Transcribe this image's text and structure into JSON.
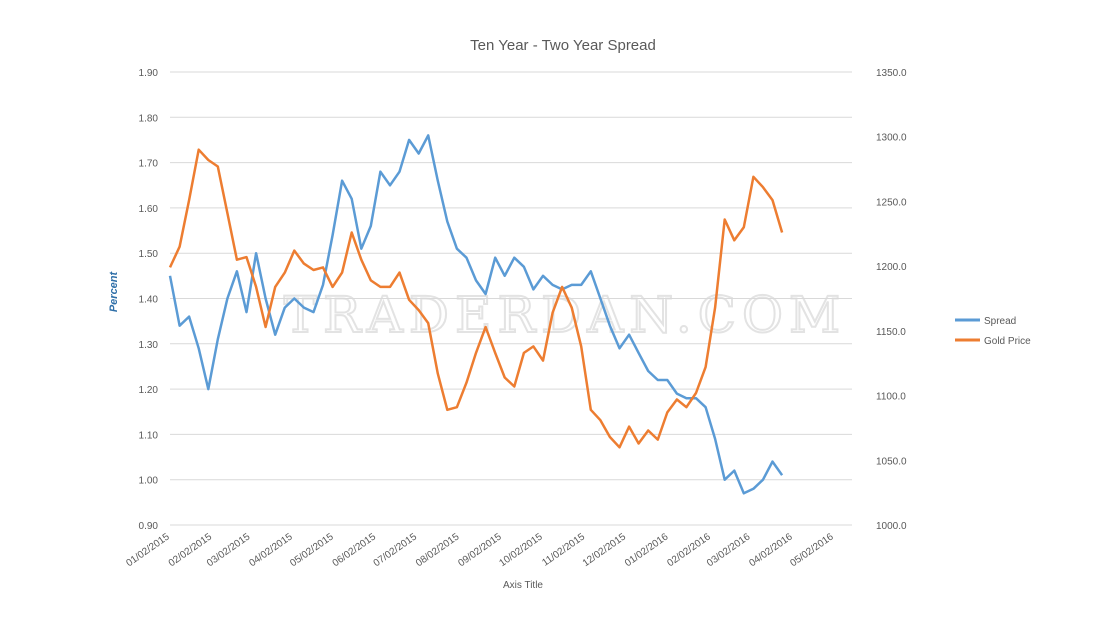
{
  "chart_data": {
    "type": "line",
    "title": "Ten Year - Two Year Spread",
    "xlabel": "Axis Title",
    "ylabel": "Percent",
    "y2label": "",
    "watermark": "TRADERDAN.COM",
    "ylim": [
      0.9,
      1.9
    ],
    "y2lim": [
      1000.0,
      1350.0
    ],
    "xlim": [
      "01/02/2015",
      "05/02/2016"
    ],
    "grid": true,
    "legend_position": "right",
    "y_ticks": [
      "0.90",
      "1.00",
      "1.10",
      "1.20",
      "1.30",
      "1.40",
      "1.50",
      "1.60",
      "1.70",
      "1.80",
      "1.90"
    ],
    "y2_ticks": [
      "1000.0",
      "1050.0",
      "1100.0",
      "1150.0",
      "1200.0",
      "1250.0",
      "1300.0",
      "1350.0"
    ],
    "x_ticks": [
      "01/02/2015",
      "02/02/2015",
      "03/02/2015",
      "04/02/2015",
      "05/02/2015",
      "06/02/2015",
      "07/02/2015",
      "08/02/2015",
      "09/02/2015",
      "10/02/2015",
      "11/02/2015",
      "12/02/2015",
      "01/02/2016",
      "02/02/2016",
      "03/02/2016",
      "04/02/2016",
      "05/02/2016"
    ],
    "x": [
      "01/02/2015",
      "01/09/2015",
      "01/16/2015",
      "01/23/2015",
      "01/30/2015",
      "02/06/2015",
      "02/13/2015",
      "02/20/2015",
      "02/27/2015",
      "03/06/2015",
      "03/13/2015",
      "03/20/2015",
      "03/27/2015",
      "04/03/2015",
      "04/10/2015",
      "04/17/2015",
      "04/24/2015",
      "05/01/2015",
      "05/08/2015",
      "05/15/2015",
      "05/22/2015",
      "05/29/2015",
      "06/05/2015",
      "06/12/2015",
      "06/19/2015",
      "06/26/2015",
      "07/03/2015",
      "07/10/2015",
      "07/17/2015",
      "07/24/2015",
      "07/31/2015",
      "08/07/2015",
      "08/14/2015",
      "08/21/2015",
      "08/28/2015",
      "09/04/2015",
      "09/11/2015",
      "09/18/2015",
      "09/25/2015",
      "10/02/2015",
      "10/09/2015",
      "10/16/2015",
      "10/23/2015",
      "10/30/2015",
      "11/06/2015",
      "11/13/2015",
      "11/20/2015",
      "11/27/2015",
      "12/04/2015",
      "12/11/2015",
      "12/18/2015",
      "12/25/2015",
      "01/01/2016",
      "01/08/2016",
      "01/15/2016",
      "01/22/2016",
      "01/29/2016",
      "02/05/2016",
      "02/12/2016",
      "02/19/2016",
      "02/26/2016",
      "03/04/2016",
      "03/11/2016",
      "03/18/2016",
      "03/25/2016"
    ],
    "series": [
      {
        "name": "Spread",
        "axis": "left",
        "color": "#5b9bd5",
        "values": [
          1.45,
          1.34,
          1.36,
          1.29,
          1.2,
          1.31,
          1.4,
          1.46,
          1.37,
          1.5,
          1.4,
          1.32,
          1.38,
          1.4,
          1.38,
          1.37,
          1.43,
          1.54,
          1.66,
          1.62,
          1.51,
          1.56,
          1.68,
          1.65,
          1.68,
          1.75,
          1.72,
          1.76,
          1.66,
          1.57,
          1.51,
          1.49,
          1.44,
          1.41,
          1.49,
          1.45,
          1.49,
          1.47,
          1.42,
          1.45,
          1.43,
          1.42,
          1.43,
          1.43,
          1.46,
          1.4,
          1.34,
          1.29,
          1.32,
          1.28,
          1.24,
          1.22,
          1.22,
          1.19,
          1.18,
          1.18,
          1.16,
          1.09,
          1.0,
          1.02,
          0.97,
          0.98,
          1.0,
          1.04,
          1.01
        ]
      },
      {
        "name": "Gold Price",
        "axis": "right",
        "color": "#ed7d31",
        "values": [
          1199,
          1215,
          1251,
          1290,
          1282,
          1277,
          1241,
          1205,
          1207,
          1184,
          1153,
          1184,
          1195,
          1212,
          1202,
          1197,
          1199,
          1184,
          1195,
          1226,
          1205,
          1189,
          1184,
          1184,
          1195,
          1174,
          1166,
          1156,
          1117,
          1089,
          1091,
          1110,
          1133,
          1153,
          1133,
          1114,
          1107,
          1133,
          1138,
          1127,
          1164,
          1184,
          1168,
          1138,
          1089,
          1081,
          1068,
          1060,
          1076,
          1063,
          1073,
          1066,
          1087,
          1097,
          1091,
          1102,
          1122,
          1168,
          1236,
          1220,
          1230,
          1269,
          1261,
          1251,
          1226
        ]
      }
    ]
  }
}
